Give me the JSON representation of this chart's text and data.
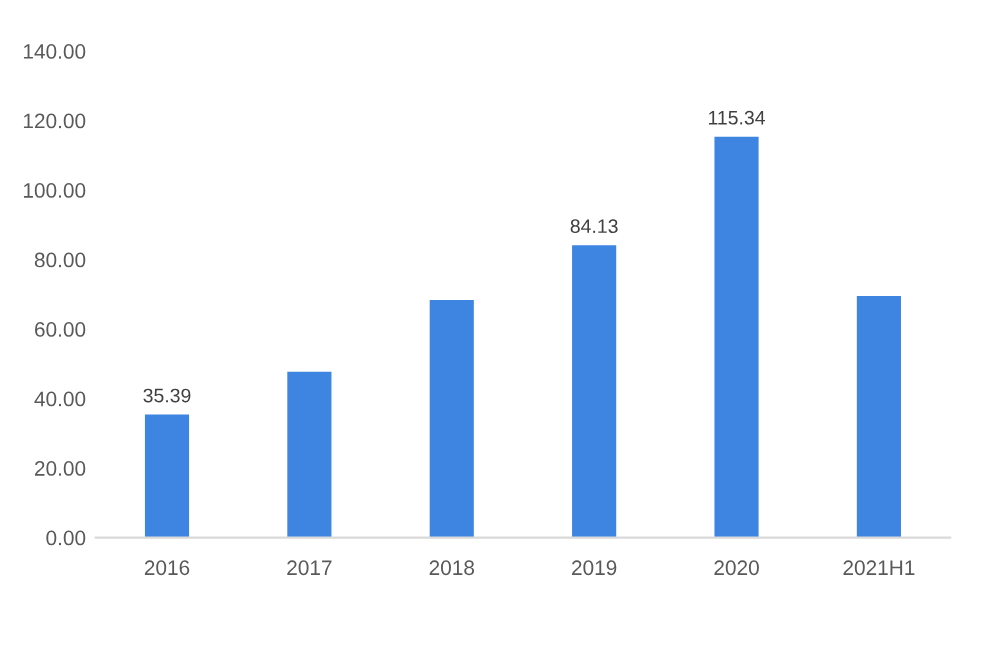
{
  "chart_data": {
    "type": "bar",
    "categories": [
      "2016",
      "2017",
      "2018",
      "2019",
      "2020",
      "2021H1"
    ],
    "values": [
      35.39,
      47.7,
      68.4,
      84.13,
      115.34,
      69.5
    ],
    "value_labels": [
      "35.39",
      null,
      null,
      "84.13",
      "115.34",
      null
    ],
    "color": "#3d85e0",
    "ylim": [
      0,
      140
    ],
    "yticks": [
      {
        "value": 0,
        "label": "0.00"
      },
      {
        "value": 20,
        "label": "20.00"
      },
      {
        "value": 40,
        "label": "40.00"
      },
      {
        "value": 60,
        "label": "60.00"
      },
      {
        "value": 80,
        "label": "80.00"
      },
      {
        "value": 100,
        "label": "100.00"
      },
      {
        "value": 120,
        "label": "120.00"
      },
      {
        "value": 140,
        "label": "140.00"
      }
    ],
    "grid": false
  }
}
